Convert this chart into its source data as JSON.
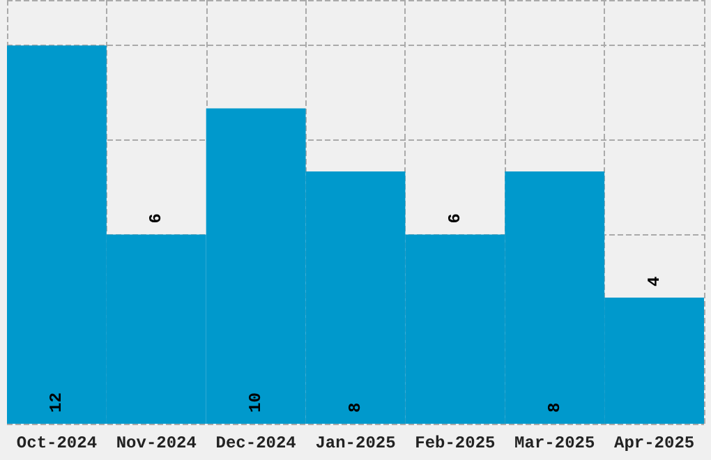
{
  "chart_data": {
    "type": "bar",
    "categories": [
      "Oct-2024",
      "Nov-2024",
      "Dec-2024",
      "Jan-2025",
      "Feb-2025",
      "Mar-2025",
      "Apr-2025"
    ],
    "values": [
      12,
      6,
      10,
      8,
      6,
      8,
      4
    ],
    "color": "#0099cc",
    "data_labels": true,
    "grid": true,
    "tick_labels": "x"
  }
}
